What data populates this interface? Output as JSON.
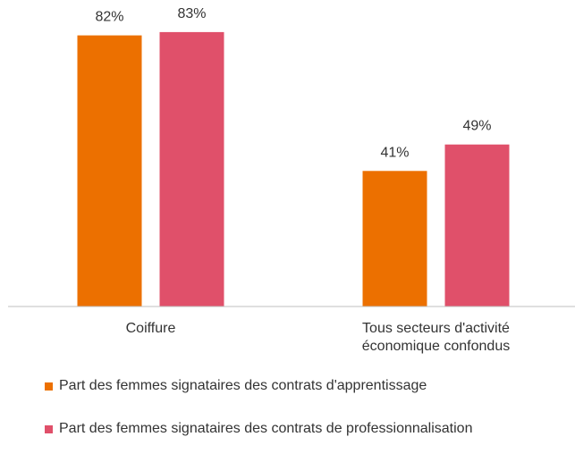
{
  "chart_data": {
    "type": "bar",
    "categories": [
      "Coiffure",
      "Tous secteurs d'activité économique confondus"
    ],
    "series": [
      {
        "name": "Part des femmes signataires des contrats d'apprentissage",
        "color": "#ec7000",
        "values": [
          82,
          41
        ],
        "value_labels": [
          "82%",
          "41%"
        ]
      },
      {
        "name": "Part des femmes signataires des contrats de professionnalisation",
        "color": "#e0506a",
        "values": [
          83,
          49
        ],
        "value_labels": [
          "83%",
          "49%"
        ]
      }
    ],
    "ylim": [
      0,
      90
    ]
  }
}
